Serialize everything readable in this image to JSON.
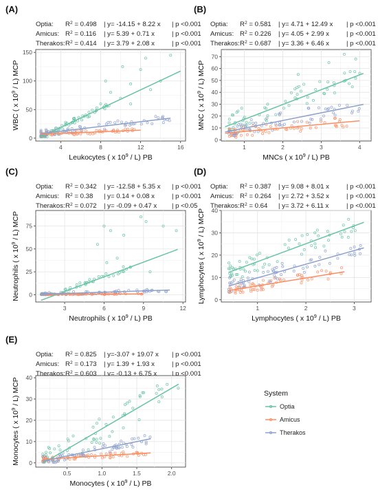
{
  "colors": {
    "Optia": "#66c2a5",
    "Amicus": "#fc8d62",
    "Therakos": "#8da0cb"
  },
  "legend": {
    "title": "System",
    "items": [
      "Optia",
      "Amicus",
      "Therakos"
    ]
  },
  "chart_data": [
    {
      "type": "scatter",
      "tag": "(A)",
      "xlabel": "Leukocytes ( x 10<sup>9</sup> / L) PB",
      "ylabel": "WBC ( x 10<sup>9</sup> / L) MCP",
      "xlim": [
        1.5,
        16.5
      ],
      "ylim": [
        -5,
        155
      ],
      "xticks": [
        4,
        8,
        12,
        16
      ],
      "yticks": [
        0,
        50,
        100,
        150
      ],
      "stats": [
        {
          "system": "Optia",
          "r2": "R<sup>2</sup> = 0.498",
          "eq": "| y= -14.15 + 8.22 x",
          "p": "| p <0.001"
        },
        {
          "system": "Amicus",
          "r2": "R<sup>2</sup> = 0.116",
          "eq": "| y= 5.39 + 0.71 x",
          "p": "| p <0.001"
        },
        {
          "system": "Therakos",
          "r2": "R<sup>2</sup> = 0.414",
          "eq": "| y= 3.79 + 2.08 x",
          "p": "| p <0.001"
        }
      ],
      "series": [
        {
          "name": "Optia",
          "intercept": -14.15,
          "slope": 8.22,
          "xrange": [
            2,
            16
          ],
          "xs": [
            2,
            9
          ],
          "ys": [
            2,
            35
          ],
          "extra": [
            [
              8,
              60
            ],
            [
              9,
              80
            ],
            [
              10,
              70
            ],
            [
              11,
              95
            ],
            [
              12,
              120
            ],
            [
              12.5,
              140
            ],
            [
              13,
              85
            ],
            [
              14,
              100
            ],
            [
              15,
              145
            ],
            [
              8.5,
              100
            ],
            [
              11,
              60
            ],
            [
              10.2,
              125
            ]
          ]
        },
        {
          "name": "Amicus",
          "intercept": 5.39,
          "slope": 0.71,
          "xrange": [
            2,
            12
          ],
          "xs": [
            2,
            12
          ],
          "ys": [
            3,
            25
          ],
          "extra": []
        },
        {
          "name": "Therakos",
          "intercept": 3.79,
          "slope": 2.08,
          "xrange": [
            2,
            15
          ],
          "xs": [
            2,
            15
          ],
          "ys": [
            4,
            45
          ],
          "extra": []
        }
      ]
    },
    {
      "type": "scatter",
      "tag": "(B)",
      "xlabel": "MNCs ( x 10<sup>9</sup> / L) PB",
      "ylabel": "MNC ( x 10<sup>9</sup> / L) MCP",
      "xlim": [
        0.4,
        4.3
      ],
      "ylim": [
        -1,
        76
      ],
      "xticks": [
        1,
        2,
        3,
        4
      ],
      "yticks": [
        0,
        10,
        20,
        30,
        40,
        50,
        60,
        70
      ],
      "stats": [
        {
          "system": "Optia",
          "r2": "R<sup>2</sup> = 0.581",
          "eq": "| y= 4.71 + 12.49 x",
          "p": "| p <0.001"
        },
        {
          "system": "Amicus",
          "r2": "R<sup>2</sup> = 0.226",
          "eq": "| y= 4.05 + 2.99 x",
          "p": "| p <0.001"
        },
        {
          "system": "Therakos",
          "r2": "R<sup>2</sup> = 0.687",
          "eq": "| y= 3.36 + 6.46 x",
          "p": "| p <0.001"
        }
      ],
      "series": [
        {
          "name": "Optia",
          "intercept": 4.71,
          "slope": 12.49,
          "xrange": [
            0.5,
            4.1
          ],
          "xs": [
            0.6,
            4.1
          ],
          "ys": [
            5,
            70
          ],
          "extra": [
            [
              3.2,
              65
            ],
            [
              3.6,
              72
            ],
            [
              3.9,
              68
            ],
            [
              2.4,
              55
            ]
          ]
        },
        {
          "name": "Amicus",
          "intercept": 4.05,
          "slope": 2.99,
          "xrange": [
            0.5,
            4
          ],
          "xs": [
            0.6,
            4
          ],
          "ys": [
            2,
            30
          ],
          "extra": []
        },
        {
          "name": "Therakos",
          "intercept": 3.36,
          "slope": 6.46,
          "xrange": [
            0.5,
            4.1
          ],
          "xs": [
            0.6,
            4.1
          ],
          "ys": [
            3,
            45
          ],
          "extra": []
        }
      ]
    },
    {
      "type": "scatter",
      "tag": "(C)",
      "xlabel": "Neutrophils ( x 10<sup>9</sup> / L) PB",
      "ylabel": "Neutrophils ( x 10<sup>9</sup> / L) MCP",
      "xlim": [
        0.8,
        12.2
      ],
      "ylim": [
        -8,
        92
      ],
      "xticks": [
        3,
        6,
        9,
        12
      ],
      "yticks": [
        0,
        25,
        50,
        75
      ],
      "stats": [
        {
          "system": "Optia",
          "r2": "R<sup>2</sup> = 0.342",
          "eq": "| y= -12.58 + 5.35 x",
          "p": "| p <0.001"
        },
        {
          "system": "Amicus",
          "r2": "R<sup>2</sup> = 0.38",
          "eq": "| y= 0.14 + 0.08 x",
          "p": "| p <0.001"
        },
        {
          "system": "Therakos",
          "r2": "R<sup>2</sup> = 0.072",
          "eq": "| y= -0.09 + 0.47 x",
          "p": "| p <0.05"
        }
      ],
      "series": [
        {
          "name": "Optia",
          "intercept": -12.58,
          "slope": 5.35,
          "xrange": [
            1.2,
            11.6
          ],
          "xs": [
            1.2,
            8
          ],
          "ys": [
            0,
            20
          ],
          "extra": [
            [
              6,
              75
            ],
            [
              6.5,
              70
            ],
            [
              7,
              40
            ],
            [
              8.8,
              85
            ],
            [
              9.2,
              80
            ],
            [
              7.5,
              65
            ],
            [
              5.5,
              55
            ],
            [
              6.2,
              35
            ],
            [
              10.5,
              75
            ],
            [
              11.5,
              70
            ],
            [
              8,
              30
            ],
            [
              9.5,
              25
            ]
          ]
        },
        {
          "name": "Amicus",
          "intercept": 0.14,
          "slope": 0.08,
          "xrange": [
            1.2,
            9
          ],
          "xs": [
            1.2,
            9
          ],
          "ys": [
            0,
            3
          ],
          "extra": []
        },
        {
          "name": "Therakos",
          "intercept": -0.09,
          "slope": 0.47,
          "xrange": [
            1.2,
            11
          ],
          "xs": [
            1.2,
            11
          ],
          "ys": [
            0,
            10
          ],
          "extra": []
        }
      ]
    },
    {
      "type": "scatter",
      "tag": "(D)",
      "xlabel": "Lymphocytes ( x 10<sup>9</sup> / L) PB",
      "ylabel": "Lymphocytes ( x 10<sup>9</sup> / L) MCP",
      "xlim": [
        0.25,
        3.35
      ],
      "ylim": [
        -1,
        40
      ],
      "xticks": [
        1,
        2,
        3
      ],
      "yticks": [
        0,
        10,
        20,
        30,
        40
      ],
      "stats": [
        {
          "system": "Optia",
          "r2": "R<sup>2</sup> = 0.387",
          "eq": "| y= 9.08 + 8.01 x",
          "p": "| p <0.001"
        },
        {
          "system": "Amicus",
          "r2": "R<sup>2</sup> = 0.264",
          "eq": "| y= 2.72 + 3.52 x",
          "p": "| p <0.001"
        },
        {
          "system": "Therakos",
          "r2": "R<sup>2</sup> = 0.64",
          "eq": "| y= 3.72 + 6.11 x",
          "p": "| p <0.001"
        }
      ],
      "series": [
        {
          "name": "Optia",
          "intercept": 9.08,
          "slope": 8.01,
          "xrange": [
            0.4,
            3.2
          ],
          "xs": [
            0.4,
            3.2
          ],
          "ys": [
            10,
            38
          ],
          "extra": []
        },
        {
          "name": "Amicus",
          "intercept": 2.72,
          "slope": 3.52,
          "xrange": [
            0.4,
            2.8
          ],
          "xs": [
            0.4,
            2.8
          ],
          "ys": [
            1,
            15
          ],
          "extra": []
        },
        {
          "name": "Therakos",
          "intercept": 3.72,
          "slope": 6.11,
          "xrange": [
            0.4,
            3.2
          ],
          "xs": [
            0.4,
            3.2
          ],
          "ys": [
            2,
            25
          ],
          "extra": []
        }
      ]
    },
    {
      "type": "scatter",
      "tag": "(E)",
      "xlabel": "Monocytes ( x 10<sup>9</sup> / L) PB",
      "ylabel": "Monocytes ( x 10<sup>9</sup> / L) MCP",
      "xlim": [
        0.05,
        2.2
      ],
      "ylim": [
        -2,
        41
      ],
      "xticks": [
        0.5,
        1.0,
        1.5,
        2.0
      ],
      "yticks": [
        0,
        10,
        20,
        30,
        40
      ],
      "stats": [
        {
          "system": "Optia",
          "r2": "R<sup>2</sup> = 0.825",
          "eq": "| y=-3.07 + 19.07 x",
          "p": "| p <0.001"
        },
        {
          "system": "Amicus",
          "r2": "R<sup>2</sup> = 0.173",
          "eq": "| y= 1.39 + 1.93 x",
          "p": "| p <0.001"
        },
        {
          "system": "Therakos",
          "r2": "R<sup>2</sup> = 0.603",
          "eq": "| y= -0.13 + 6.75 x",
          "p": "| p <0.001"
        }
      ],
      "series": [
        {
          "name": "Optia",
          "intercept": -3.07,
          "slope": 19.07,
          "xrange": [
            0.15,
            2.1
          ],
          "xs": [
            0.15,
            2.1
          ],
          "ys": [
            0,
            39
          ],
          "extra": []
        },
        {
          "name": "Amicus",
          "intercept": 1.39,
          "slope": 1.93,
          "xrange": [
            0.15,
            1.7
          ],
          "xs": [
            0.15,
            1.7
          ],
          "ys": [
            0,
            8
          ],
          "extra": []
        },
        {
          "name": "Therakos",
          "intercept": -0.13,
          "slope": 6.75,
          "xrange": [
            0.15,
            1.7
          ],
          "xs": [
            0.15,
            1.7
          ],
          "ys": [
            0,
            14
          ],
          "extra": []
        }
      ]
    }
  ]
}
